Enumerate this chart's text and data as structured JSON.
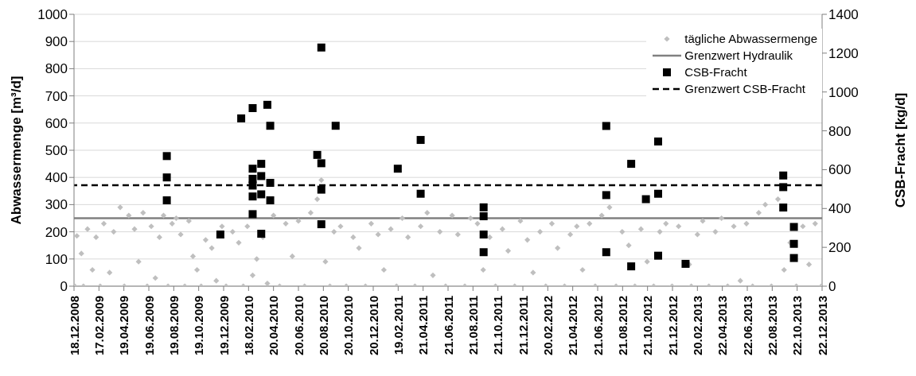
{
  "chart_data": {
    "type": "scatter",
    "xlabel": null,
    "ylabel": "Abwassermenge  [m³/d]",
    "y2label": "CSB-Fracht [kg/d]",
    "xlim": [
      "2008-12-18",
      "2013-12-22"
    ],
    "xticks": [
      {
        "value": "2008-12-18",
        "label": "18.12.2008"
      },
      {
        "value": "2009-02-17",
        "label": "17.02.2009"
      },
      {
        "value": "2009-04-19",
        "label": "19.04.2009"
      },
      {
        "value": "2009-06-19",
        "label": "19.06.2009"
      },
      {
        "value": "2009-08-19",
        "label": "19.08.2009"
      },
      {
        "value": "2009-10-19",
        "label": "19.10.2009"
      },
      {
        "value": "2009-12-19",
        "label": "19.12.2009"
      },
      {
        "value": "2010-02-18",
        "label": "18.02.2010"
      },
      {
        "value": "2010-04-20",
        "label": "20.04.2010"
      },
      {
        "value": "2010-06-20",
        "label": "20.06.2010"
      },
      {
        "value": "2010-08-20",
        "label": "20.08.2010"
      },
      {
        "value": "2010-10-20",
        "label": "20.10.2010"
      },
      {
        "value": "2010-12-20",
        "label": "20.12.2010"
      },
      {
        "value": "2011-02-19",
        "label": "19.02.2011"
      },
      {
        "value": "2011-04-21",
        "label": "21.04.2011"
      },
      {
        "value": "2011-06-21",
        "label": "21.06.2011"
      },
      {
        "value": "2011-08-21",
        "label": "21.08.2011"
      },
      {
        "value": "2011-10-21",
        "label": "21.10.2011"
      },
      {
        "value": "2011-12-21",
        "label": "21.12.2011"
      },
      {
        "value": "2012-02-20",
        "label": "20.02.2012"
      },
      {
        "value": "2012-04-21",
        "label": "21.04.2012"
      },
      {
        "value": "2012-06-21",
        "label": "21.06.2012"
      },
      {
        "value": "2012-08-21",
        "label": "21.08.2012"
      },
      {
        "value": "2012-10-21",
        "label": "21.10.2012"
      },
      {
        "value": "2012-12-21",
        "label": "21.12.2012"
      },
      {
        "value": "2013-02-20",
        "label": "20.02.2013"
      },
      {
        "value": "2013-04-22",
        "label": "22.04.2013"
      },
      {
        "value": "2013-06-22",
        "label": "22.06.2013"
      },
      {
        "value": "2013-08-22",
        "label": "22.08.2013"
      },
      {
        "value": "2013-10-22",
        "label": "22.10.2013"
      },
      {
        "value": "2013-12-22",
        "label": "22.12.2013"
      }
    ],
    "ylim": [
      0,
      1000
    ],
    "yticks": [
      0,
      100,
      200,
      300,
      400,
      500,
      600,
      700,
      800,
      900,
      1000
    ],
    "y2lim": [
      0,
      1400
    ],
    "y2ticks": [
      0,
      200,
      400,
      600,
      800,
      1000,
      1200,
      1400
    ],
    "grid": "y",
    "legend": "top right",
    "series": [
      {
        "name": "tägliche Abwassermenge",
        "color": "#bfbfbf",
        "marker": "diamond",
        "x": [
          "2008-12-20",
          "2008-12-25",
          "2009-01-05",
          "2009-01-10",
          "2009-01-20",
          "2009-02-01",
          "2009-02-10",
          "2009-02-20",
          "2009-03-01",
          "2009-03-15",
          "2009-03-25",
          "2009-04-10",
          "2009-04-20",
          "2009-05-01",
          "2009-05-15",
          "2009-05-25",
          "2009-06-05",
          "2009-06-15",
          "2009-06-25",
          "2009-07-05",
          "2009-07-15",
          "2009-07-25",
          "2009-08-05",
          "2009-08-15",
          "2009-08-25",
          "2009-09-05",
          "2009-09-15",
          "2009-09-25",
          "2009-10-05",
          "2009-10-15",
          "2009-10-25",
          "2009-11-05",
          "2009-11-20",
          "2009-12-01",
          "2009-12-15",
          "2009-12-25",
          "2010-01-10",
          "2010-01-25",
          "2010-02-05",
          "2010-02-15",
          "2010-02-28",
          "2010-03-10",
          "2010-03-25",
          "2010-04-05",
          "2010-04-20",
          "2010-05-05",
          "2010-05-20",
          "2010-06-05",
          "2010-06-20",
          "2010-07-05",
          "2010-07-20",
          "2010-08-05",
          "2010-08-15",
          "2010-08-25",
          "2010-09-05",
          "2010-09-15",
          "2010-10-01",
          "2010-10-15",
          "2010-11-01",
          "2010-11-15",
          "2010-12-01",
          "2010-12-15",
          "2011-01-01",
          "2011-01-15",
          "2011-02-01",
          "2011-02-15",
          "2011-03-01",
          "2011-03-15",
          "2011-04-01",
          "2011-04-15",
          "2011-05-01",
          "2011-05-15",
          "2011-06-01",
          "2011-06-15",
          "2011-07-01",
          "2011-07-15",
          "2011-08-01",
          "2011-08-15",
          "2011-09-01",
          "2011-09-15",
          "2011-10-01",
          "2011-10-15",
          "2011-11-01",
          "2011-11-15",
          "2011-12-01",
          "2011-12-15",
          "2012-01-01",
          "2012-01-15",
          "2012-02-01",
          "2012-02-15",
          "2012-03-01",
          "2012-03-15",
          "2012-04-01",
          "2012-04-15",
          "2012-05-01",
          "2012-05-15",
          "2012-06-01",
          "2012-06-15",
          "2012-07-01",
          "2012-07-20",
          "2012-08-05",
          "2012-08-20",
          "2012-09-05",
          "2012-09-20",
          "2012-10-05",
          "2012-10-20",
          "2012-11-05",
          "2012-11-20",
          "2012-12-05",
          "2012-12-20",
          "2013-01-05",
          "2013-01-31",
          "2013-02-05",
          "2013-02-20",
          "2013-03-05",
          "2013-03-20",
          "2013-04-05",
          "2013-04-20",
          "2013-05-05",
          "2013-05-20",
          "2013-06-05",
          "2013-06-20",
          "2013-07-05",
          "2013-07-20",
          "2013-08-05",
          "2013-08-20",
          "2013-09-05",
          "2013-09-20",
          "2013-10-05",
          "2013-10-20",
          "2013-11-05",
          "2013-11-20",
          "2013-12-05",
          "2013-12-20"
        ],
        "values": [
          0,
          185,
          120,
          0,
          210,
          60,
          180,
          0,
          230,
          50,
          200,
          290,
          0,
          260,
          210,
          90,
          270,
          0,
          220,
          30,
          180,
          260,
          0,
          230,
          250,
          190,
          0,
          240,
          110,
          60,
          0,
          170,
          140,
          20,
          220,
          0,
          200,
          160,
          0,
          220,
          40,
          100,
          180,
          10,
          260,
          0,
          230,
          110,
          240,
          0,
          270,
          320,
          390,
          90,
          0,
          200,
          220,
          0,
          180,
          140,
          0,
          230,
          190,
          60,
          210,
          0,
          250,
          180,
          0,
          220,
          270,
          40,
          200,
          0,
          260,
          190,
          0,
          250,
          230,
          60,
          180,
          0,
          210,
          130,
          0,
          240,
          170,
          50,
          200,
          0,
          230,
          140,
          0,
          190,
          220,
          60,
          230,
          0,
          260,
          290,
          0,
          200,
          150,
          0,
          210,
          90,
          0,
          200,
          230,
          0,
          220,
          80,
          0,
          190,
          240,
          0,
          200,
          250,
          0,
          220,
          20,
          230,
          0,
          270,
          300,
          0,
          320,
          60,
          160,
          0,
          220,
          80,
          230,
          0
        ]
      },
      {
        "name": "CSB-Fracht",
        "color": "#000000",
        "marker": "square",
        "axis": "y2",
        "x": [
          "2009-08-02",
          "2009-08-02",
          "2009-08-02",
          "2009-12-11",
          "2010-01-31",
          "2010-02-28",
          "2010-02-28",
          "2010-02-28",
          "2010-02-28",
          "2010-02-28",
          "2010-02-28",
          "2010-03-21",
          "2010-03-21",
          "2010-03-21",
          "2010-03-21",
          "2010-04-05",
          "2010-04-12",
          "2010-04-12",
          "2010-04-12",
          "2010-08-05",
          "2010-08-15",
          "2010-08-15",
          "2010-08-15",
          "2010-08-15",
          "2010-09-19",
          "2011-02-18",
          "2011-04-15",
          "2011-04-15",
          "2011-09-16",
          "2011-09-16",
          "2011-09-16",
          "2011-09-16",
          "2012-07-12",
          "2012-07-12",
          "2012-07-12",
          "2012-09-11",
          "2012-09-11",
          "2012-10-17",
          "2012-11-16",
          "2012-11-16",
          "2012-11-16",
          "2013-01-22",
          "2013-09-18",
          "2013-09-18",
          "2013-09-18",
          "2013-10-14",
          "2013-10-14",
          "2013-10-14"
        ],
        "values": [
          670,
          560,
          442,
          266,
          864,
          917,
          605,
          462,
          371,
          553,
          518,
          630,
          567,
          473,
          270,
          934,
          826,
          532,
          442,
          676,
          1229,
          633,
          497,
          319,
          826,
          605,
          753,
          476,
          406,
          360,
          266,
          175,
          825,
          469,
          175,
          102,
          630,
          448,
          745,
          476,
          157,
          115,
          570,
          510,
          405,
          305,
          218,
          145
        ]
      }
    ],
    "ref_lines": [
      {
        "axis": "y",
        "value": 250,
        "label": "Grenzwert Hydraulik",
        "color": "#808080",
        "line_style": "solid"
      },
      {
        "axis": "y2",
        "value": 520,
        "label": "Grenzwert CSB-Fracht",
        "color": "#000000",
        "line_style": "dashed"
      }
    ]
  }
}
